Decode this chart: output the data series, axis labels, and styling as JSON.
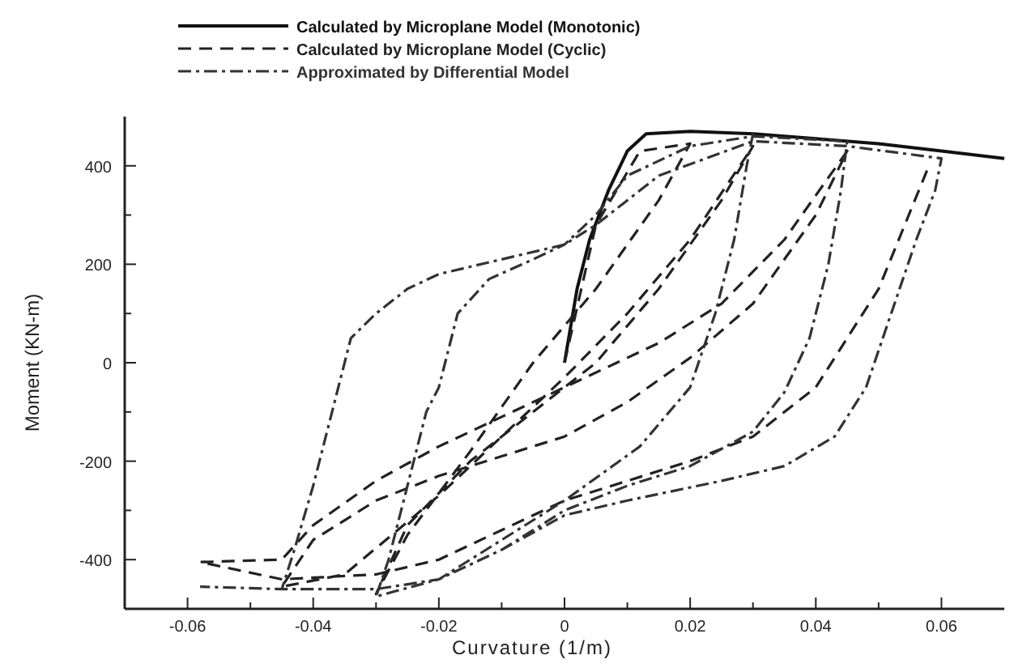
{
  "chart_data": {
    "type": "line",
    "xlabel": "Curvature (1/m)",
    "ylabel": "Moment (KN-m)",
    "xlim": [
      -0.07,
      0.07
    ],
    "ylim": [
      -500,
      500
    ],
    "xticks": [
      -0.06,
      {
        "value": -0.05,
        "label": null
      },
      -0.04,
      {
        "value": -0.03,
        "label": null
      },
      -0.02,
      {
        "value": -0.01,
        "label": null
      },
      0,
      {
        "value": 0.01,
        "label": null
      },
      0.02,
      {
        "value": 0.03,
        "label": null
      },
      0.04,
      {
        "value": 0.05,
        "label": null
      },
      0.06
    ],
    "yticks": [
      -400,
      {
        "value": -300,
        "label": null
      },
      -200,
      {
        "value": -100,
        "label": null
      },
      0,
      {
        "value": 100,
        "label": null
      },
      200,
      {
        "value": 300,
        "label": null
      },
      400
    ],
    "grid": false,
    "legend": "top",
    "series": [
      {
        "name": "Calculated by Microplane Model (Monotonic)",
        "color": "#111111",
        "line_style": "solid",
        "x": [
          0,
          0.002,
          0.004,
          0.007,
          0.01,
          0.013,
          0.02,
          0.03,
          0.04,
          0.05,
          0.06,
          0.07
        ],
        "values": [
          0,
          150,
          250,
          350,
          430,
          465,
          470,
          465,
          455,
          445,
          430,
          415
        ]
      },
      {
        "name": "Calculated by Microplane Model (Cyclic)",
        "color": "#222222",
        "line_style": "dashed",
        "x": [
          0,
          0.005,
          0.012,
          0.02,
          0.015,
          0.005,
          -0.005,
          -0.015,
          -0.025,
          -0.03,
          -0.025,
          -0.015,
          -0.005,
          0.005,
          0.015,
          0.025,
          0.03,
          0.02,
          0.01,
          0,
          -0.01,
          -0.02,
          -0.035,
          -0.045,
          -0.04,
          -0.03,
          -0.02,
          -0.01,
          0,
          0.01,
          0.02,
          0.03,
          0.04,
          0.045,
          0.035,
          0.025,
          0.015,
          0,
          -0.01,
          -0.02,
          -0.03,
          -0.04,
          -0.045,
          -0.058,
          -0.045,
          -0.03,
          -0.02,
          -0.01,
          0,
          0.01,
          0.02,
          0.03,
          0.04,
          0.05,
          0.058
        ],
        "values": [
          0,
          280,
          430,
          445,
          330,
          150,
          0,
          -180,
          -350,
          -470,
          -330,
          -200,
          -100,
          0,
          150,
          330,
          440,
          250,
          100,
          -30,
          -150,
          -270,
          -430,
          -455,
          -360,
          -280,
          -230,
          -190,
          -150,
          -80,
          10,
          120,
          300,
          430,
          250,
          120,
          40,
          -50,
          -110,
          -170,
          -240,
          -330,
          -400,
          -405,
          -440,
          -430,
          -400,
          -340,
          -280,
          -240,
          -200,
          -150,
          -50,
          150,
          400
        ]
      },
      {
        "name": "Approximated by Differential Model",
        "color": "#333333",
        "line_style": "dashdot",
        "x": [
          0.03,
          0.029,
          0.027,
          0.024,
          0.02,
          0.012,
          0,
          -0.01,
          -0.02,
          -0.03,
          -0.028,
          -0.025,
          -0.022,
          -0.02,
          -0.017,
          -0.012,
          -0.005,
          0,
          0.005,
          0.01,
          0.02,
          0.03,
          0.045,
          0.044,
          0.042,
          0.039,
          0.035,
          0.03,
          0.02,
          0.01,
          0,
          -0.01,
          -0.02,
          -0.03,
          -0.045,
          -0.043,
          -0.04,
          -0.037,
          -0.034,
          -0.03,
          -0.025,
          -0.02,
          -0.01,
          0,
          0.005,
          0.015,
          0.03,
          0.045,
          0.06,
          0.059,
          0.056,
          0.052,
          0.048,
          0.043,
          0.035,
          0.025,
          0.01,
          0,
          -0.01,
          -0.02,
          -0.03,
          -0.045,
          -0.058
        ],
        "values": [
          465,
          400,
          250,
          100,
          -50,
          -170,
          -280,
          -360,
          -440,
          -475,
          -400,
          -250,
          -100,
          -50,
          100,
          170,
          210,
          240,
          300,
          380,
          440,
          460,
          450,
          350,
          200,
          50,
          -60,
          -140,
          -210,
          -250,
          -300,
          -380,
          -440,
          -460,
          -460,
          -380,
          -250,
          -100,
          50,
          100,
          150,
          180,
          210,
          240,
          280,
          380,
          450,
          440,
          415,
          350,
          250,
          100,
          -50,
          -150,
          -210,
          -240,
          -280,
          -310,
          -380,
          -440,
          -460,
          -460,
          -455
        ]
      }
    ]
  }
}
